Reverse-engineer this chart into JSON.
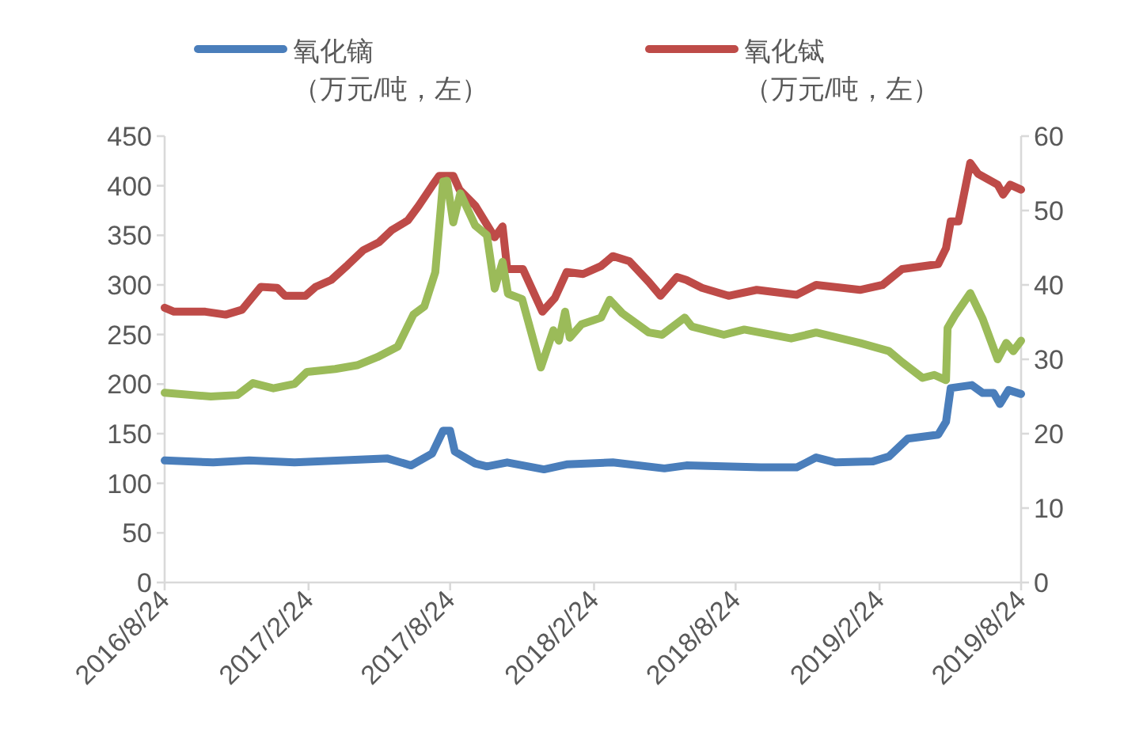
{
  "chart_data": {
    "type": "line",
    "legend": "top",
    "xlim": [
      "2016-08-24",
      "2019-08-24"
    ],
    "xticks": [
      {
        "value": "2016-08-24",
        "label": "2016/8/24"
      },
      {
        "value": "2017-02-24",
        "label": "2017/2/24"
      },
      {
        "value": "2017-08-24",
        "label": "2017/8/24"
      },
      {
        "value": "2018-02-24",
        "label": "2018/2/24"
      },
      {
        "value": "2018-08-24",
        "label": "2018/8/24"
      },
      {
        "value": "2019-02-24",
        "label": "2019/2/24"
      },
      {
        "value": "2019-08-24",
        "label": "2019/8/24"
      }
    ],
    "ylim": [
      0,
      450
    ],
    "yticks": [
      0,
      50,
      100,
      150,
      200,
      250,
      300,
      350,
      400,
      450
    ],
    "y2lim": [
      0,
      60
    ],
    "y2ticks": [
      0,
      10,
      20,
      30,
      40,
      50,
      60
    ],
    "series": [
      {
        "name": "氧化镝（万元/吨，左）",
        "color": "#4a7ebb",
        "x": [
          "2016-08-24",
          "2016-10-25",
          "2016-12-10",
          "2017-02-06",
          "2017-06-05",
          "2017-07-05",
          "2017-08-01",
          "2017-08-15",
          "2017-08-24",
          "2017-08-30",
          "2017-09-25",
          "2017-10-10",
          "2017-11-05",
          "2017-12-22",
          "2018-01-20",
          "2018-03-20",
          "2018-05-25",
          "2018-06-22",
          "2018-09-25",
          "2018-11-10",
          "2018-12-05",
          "2018-12-30",
          "2019-02-15",
          "2019-03-08",
          "2019-04-01",
          "2019-05-10",
          "2019-05-20",
          "2019-05-26",
          "2019-06-22",
          "2019-07-06",
          "2019-07-20",
          "2019-07-28",
          "2019-08-08",
          "2019-08-24"
        ],
        "values": [
          123,
          121,
          123,
          121,
          125,
          118,
          130,
          153,
          153,
          132,
          120,
          117,
          121,
          114,
          119,
          121,
          115,
          118,
          116,
          116,
          126,
          121,
          122,
          127,
          145,
          149,
          162,
          196,
          199,
          191,
          191,
          180,
          194,
          190
        ]
      },
      {
        "name": "氧化铽（万元/吨，左）",
        "color": "#be4b48",
        "x": [
          "2016-08-24",
          "2016-09-05",
          "2016-10-15",
          "2016-11-10",
          "2016-12-01",
          "2016-12-25",
          "2017-01-15",
          "2017-01-25",
          "2017-02-20",
          "2017-03-05",
          "2017-03-25",
          "2017-04-15",
          "2017-05-05",
          "2017-05-25",
          "2017-06-10",
          "2017-07-01",
          "2017-07-15",
          "2017-08-01",
          "2017-08-10",
          "2017-08-28",
          "2017-09-05",
          "2017-09-25",
          "2017-10-20",
          "2017-10-30",
          "2017-11-05",
          "2017-11-25",
          "2017-12-20",
          "2018-01-05",
          "2018-01-20",
          "2018-02-10",
          "2018-03-05",
          "2018-03-20",
          "2018-04-10",
          "2018-05-05",
          "2018-05-20",
          "2018-06-10",
          "2018-06-22",
          "2018-07-12",
          "2018-08-15",
          "2018-09-20",
          "2018-11-10",
          "2018-12-05",
          "2019-01-30",
          "2019-02-28",
          "2019-03-25",
          "2019-05-10",
          "2019-05-20",
          "2019-05-26",
          "2019-06-05",
          "2019-06-20",
          "2019-06-30",
          "2019-07-25",
          "2019-08-01",
          "2019-08-10",
          "2019-08-24"
        ],
        "values": [
          277,
          273,
          273,
          270,
          275,
          298,
          297,
          289,
          289,
          298,
          305,
          320,
          335,
          343,
          355,
          365,
          380,
          400,
          410,
          410,
          396,
          380,
          348,
          359,
          316,
          316,
          273,
          287,
          313,
          311,
          319,
          329,
          324,
          303,
          289,
          308,
          305,
          297,
          289,
          295,
          290,
          300,
          295,
          300,
          316,
          321,
          337,
          364,
          364,
          423,
          412,
          401,
          391,
          401,
          396
        ]
      },
      {
        "color": "#9bbb59",
        "axis": "y2",
        "x": [
          "2016-08-24",
          "2016-10-22",
          "2016-11-25",
          "2016-12-15",
          "2017-01-10",
          "2017-02-06",
          "2017-02-22",
          "2017-03-30",
          "2017-04-27",
          "2017-05-23",
          "2017-06-18",
          "2017-07-08",
          "2017-07-22",
          "2017-08-05",
          "2017-08-15",
          "2017-08-20",
          "2017-08-28",
          "2017-09-06",
          "2017-09-25",
          "2017-10-10",
          "2017-10-20",
          "2017-10-30",
          "2017-11-06",
          "2017-11-24",
          "2017-12-18",
          "2018-01-03",
          "2018-01-10",
          "2018-01-18",
          "2018-01-24",
          "2018-02-08",
          "2018-03-05",
          "2018-03-16",
          "2018-04-01",
          "2018-05-05",
          "2018-05-22",
          "2018-06-20",
          "2018-06-29",
          "2018-08-09",
          "2018-09-04",
          "2018-11-03",
          "2018-12-05",
          "2019-01-30",
          "2019-03-08",
          "2019-03-25",
          "2019-04-20",
          "2019-05-05",
          "2019-05-20",
          "2019-05-22",
          "2019-06-01",
          "2019-06-20",
          "2019-07-06",
          "2019-07-25",
          "2019-08-05",
          "2019-08-14",
          "2019-08-24"
        ],
        "values": [
          25.5,
          25.0,
          25.2,
          26.8,
          26.1,
          26.7,
          28.3,
          28.7,
          29.2,
          30.3,
          31.7,
          36.0,
          37.1,
          41.7,
          53.9,
          54.0,
          48.4,
          52.3,
          48.0,
          46.7,
          39.5,
          43.1,
          38.8,
          38.1,
          28.9,
          33.9,
          32.5,
          36.4,
          32.9,
          34.7,
          35.6,
          38.0,
          36.2,
          33.6,
          33.3,
          35.6,
          34.4,
          33.3,
          34.0,
          32.8,
          33.6,
          32.2,
          31.1,
          29.6,
          27.5,
          27.9,
          27.2,
          34.2,
          36.0,
          38.9,
          35.4,
          30.0,
          32.2,
          31.1,
          32.5
        ]
      }
    ]
  }
}
